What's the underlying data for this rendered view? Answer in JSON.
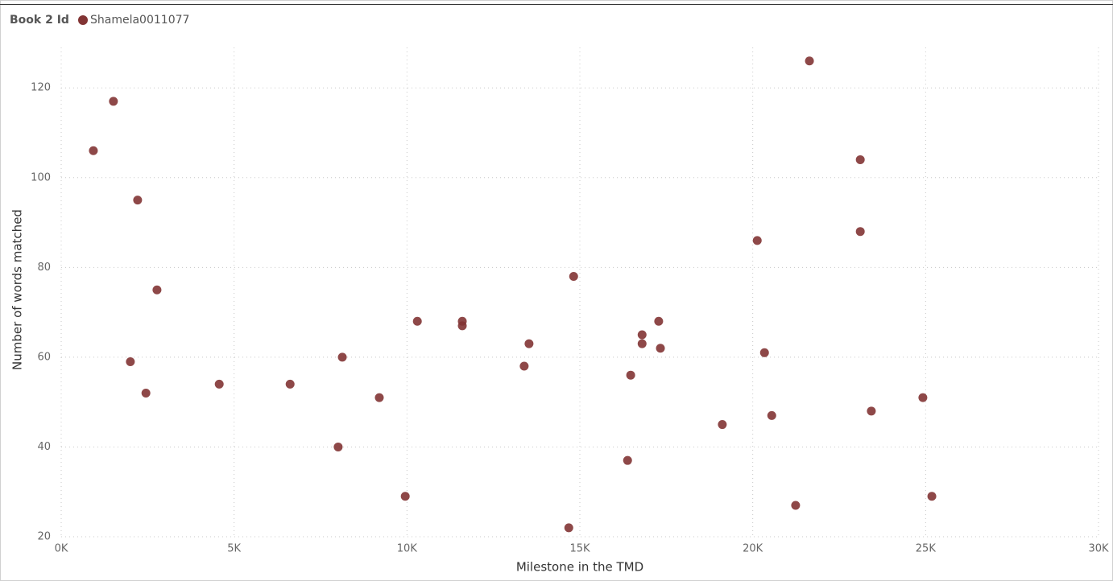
{
  "chart_data": {
    "type": "scatter",
    "legend_title": "Book 2 Id",
    "xlabel": "Milestone in the TMD",
    "ylabel": "Number of words matched",
    "series": [
      {
        "name": "Shamela0011077",
        "color": "#823434",
        "x": [
          930,
          1510,
          2210,
          2770,
          2000,
          2450,
          4570,
          6620,
          8130,
          8010,
          9200,
          9950,
          10300,
          11600,
          11600,
          13390,
          13530,
          14820,
          14680,
          16380,
          16470,
          16800,
          16800,
          17280,
          17330,
          19120,
          20130,
          20340,
          20550,
          21240,
          21640,
          23110,
          23110,
          23430,
          24920,
          25180
        ],
        "values": [
          106,
          117,
          95,
          75,
          59,
          52,
          54,
          54,
          60,
          40,
          51,
          29,
          68,
          68,
          67,
          58,
          63,
          78,
          22,
          37,
          56,
          65,
          63,
          68,
          62,
          45,
          86,
          61,
          47,
          27,
          126,
          104,
          88,
          48,
          51,
          29
        ]
      }
    ],
    "xlim": [
      0,
      30000
    ],
    "ylim": [
      20,
      129
    ],
    "xticks": [
      {
        "value": 0,
        "label": "0K"
      },
      {
        "value": 5000,
        "label": "5K"
      },
      {
        "value": 10000,
        "label": "10K"
      },
      {
        "value": 15000,
        "label": "15K"
      },
      {
        "value": 20000,
        "label": "20K"
      },
      {
        "value": 25000,
        "label": "25K"
      },
      {
        "value": 30000,
        "label": "30K"
      }
    ],
    "yticks": [
      20,
      40,
      60,
      80,
      100,
      120
    ],
    "grid": true
  }
}
